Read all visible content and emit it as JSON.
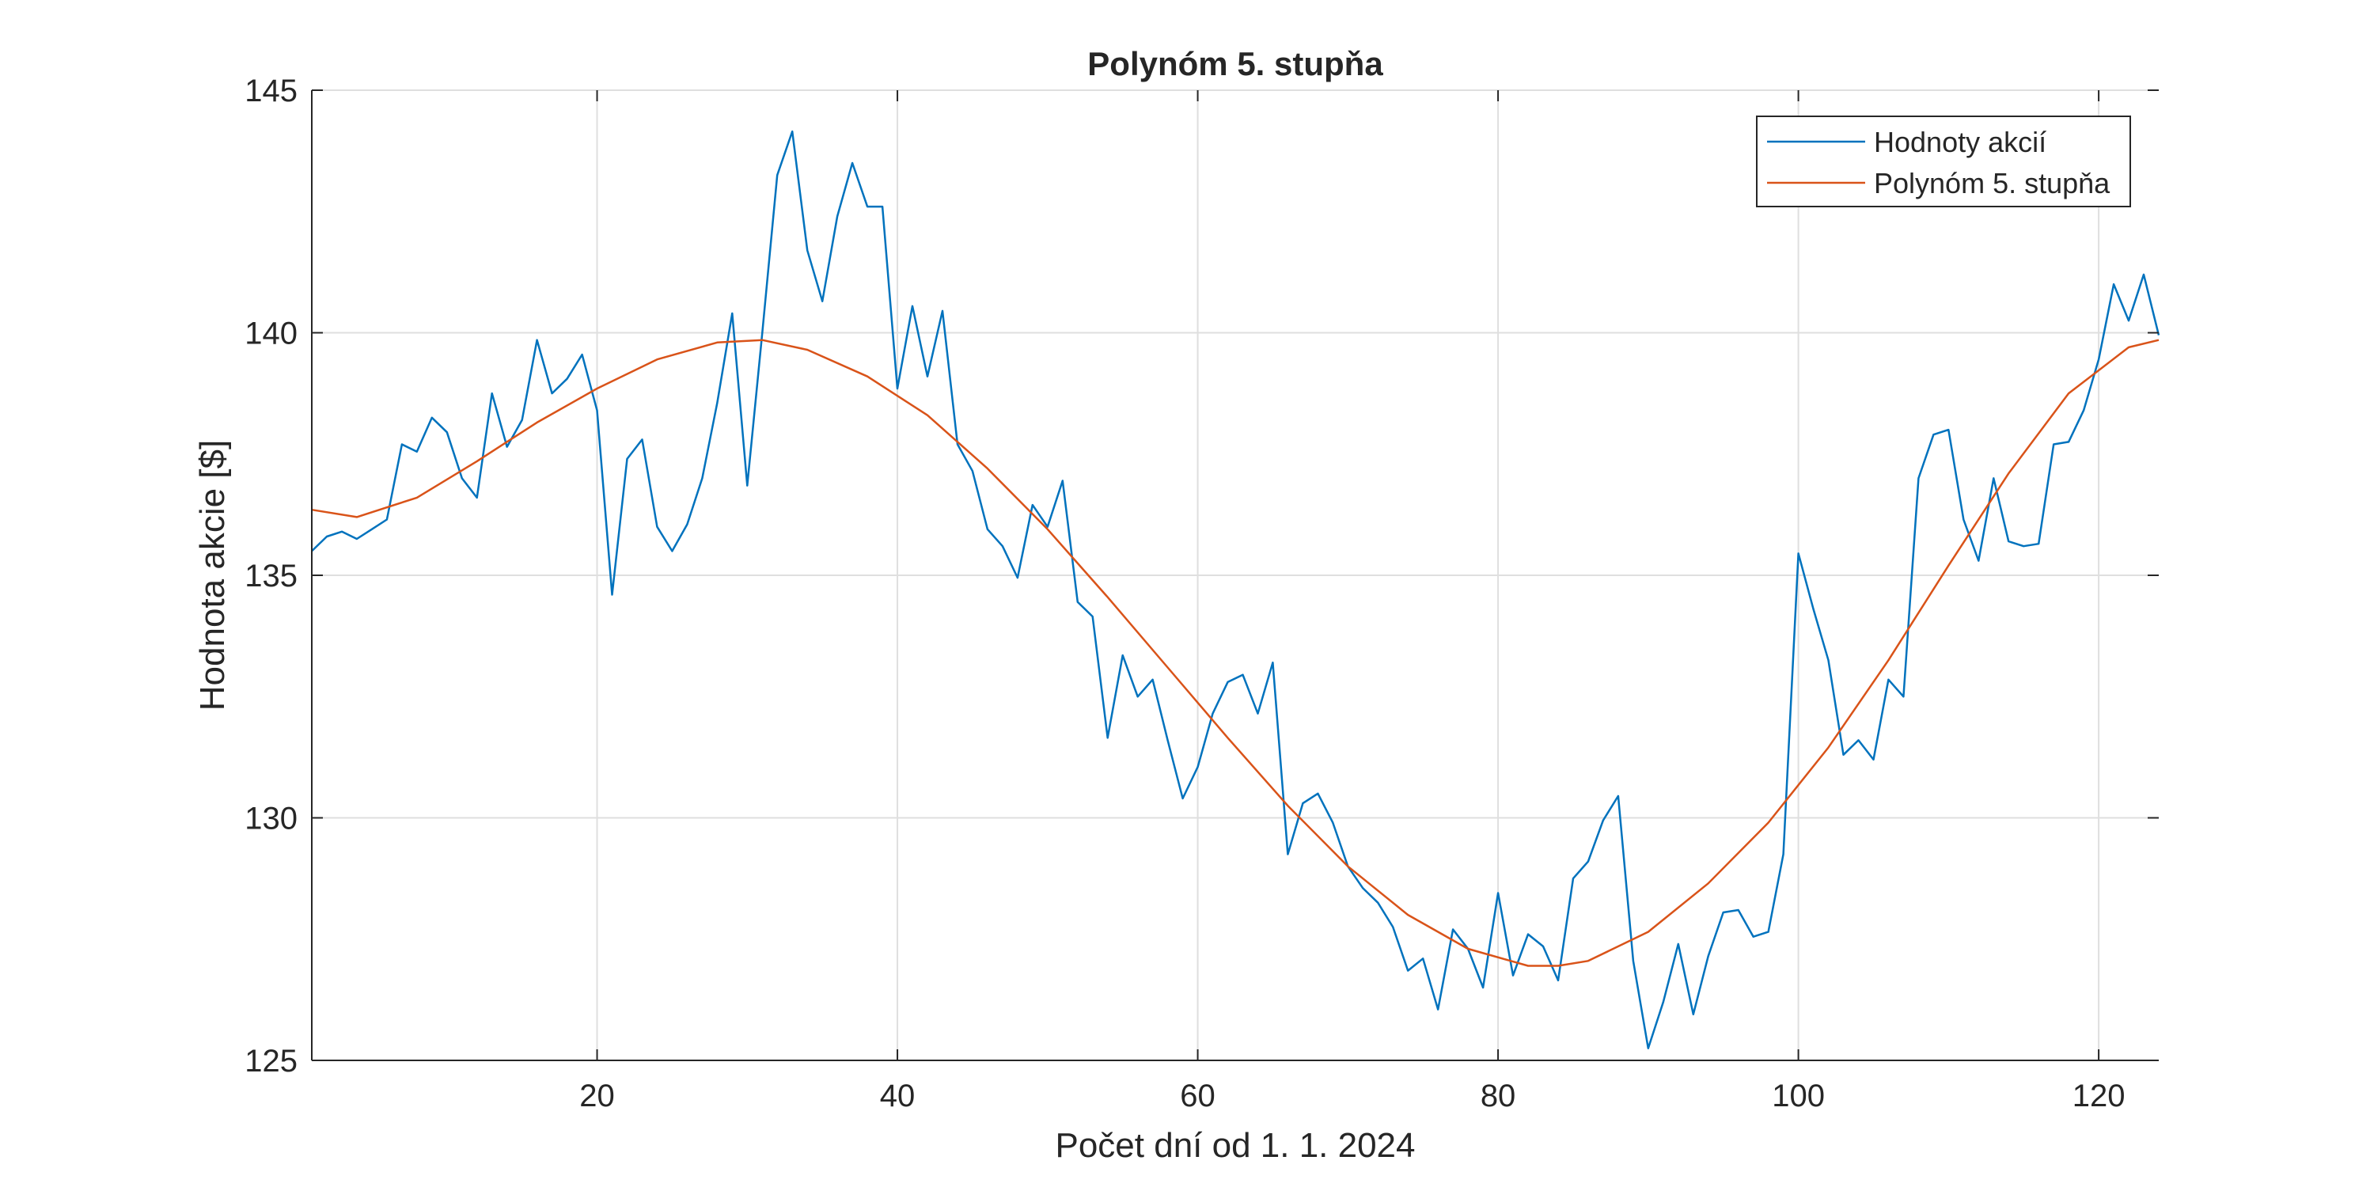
{
  "chart_data": {
    "type": "line",
    "title": "Polynóm 5. stupňa",
    "xlabel": "Počet dní od 1. 1. 2024",
    "ylabel": "Hodnota akcie [$]",
    "xlim": [
      1,
      124
    ],
    "ylim": [
      125,
      145
    ],
    "xticks": [
      20,
      40,
      60,
      80,
      100,
      120
    ],
    "yticks": [
      125,
      130,
      135,
      140,
      145
    ],
    "xtick_labels": [
      "20",
      "40",
      "60",
      "80",
      "100",
      "120"
    ],
    "ytick_labels": [
      "125",
      "130",
      "135",
      "140",
      "145"
    ],
    "grid": true,
    "legend_position": "top-right",
    "series": [
      {
        "name": "Hodnoty akcií",
        "color": "#0072BD",
        "x": [
          1,
          2,
          3,
          4,
          5,
          6,
          7,
          8,
          9,
          10,
          11,
          12,
          13,
          14,
          15,
          16,
          17,
          18,
          19,
          20,
          21,
          22,
          23,
          24,
          25,
          26,
          27,
          28,
          29,
          30,
          31,
          32,
          33,
          34,
          35,
          36,
          37,
          38,
          39,
          40,
          41,
          42,
          43,
          44,
          45,
          46,
          47,
          48,
          49,
          50,
          51,
          52,
          53,
          54,
          55,
          56,
          57,
          58,
          59,
          60,
          61,
          62,
          63,
          64,
          65,
          66,
          67,
          68,
          69,
          70,
          71,
          72,
          73,
          74,
          75,
          76,
          77,
          78,
          79,
          80,
          81,
          82,
          83,
          84,
          85,
          86,
          87,
          88,
          89,
          90,
          91,
          92,
          93,
          94,
          95,
          96,
          97,
          98,
          99,
          100,
          101,
          102,
          103,
          104,
          105,
          106,
          107,
          108,
          109,
          110,
          111,
          112,
          113,
          114,
          115,
          116,
          117,
          118,
          119,
          120,
          121,
          122,
          123,
          124
        ],
        "y": [
          135.5,
          135.8,
          135.9,
          135.75,
          135.95,
          136.15,
          137.7,
          137.55,
          138.25,
          137.95,
          137.0,
          136.6,
          138.75,
          137.65,
          138.2,
          139.85,
          138.75,
          139.05,
          139.55,
          138.4,
          134.6,
          137.4,
          137.8,
          136.0,
          135.5,
          136.05,
          137.0,
          138.55,
          140.4,
          136.85,
          140.0,
          143.25,
          144.15,
          141.7,
          140.65,
          142.4,
          143.5,
          142.6,
          142.6,
          138.85,
          140.55,
          139.1,
          140.45,
          137.7,
          137.15,
          135.95,
          135.6,
          134.95,
          136.45,
          136.0,
          136.95,
          134.45,
          134.15,
          131.65,
          133.35,
          132.5,
          132.85,
          131.6,
          130.4,
          131.05,
          132.15,
          132.8,
          132.95,
          132.15,
          133.2,
          129.25,
          130.3,
          130.5,
          129.9,
          129.0,
          128.55,
          128.25,
          127.75,
          126.85,
          127.1,
          126.05,
          127.7,
          127.3,
          126.5,
          128.45,
          126.75,
          127.6,
          127.35,
          126.65,
          128.75,
          129.1,
          129.95,
          130.45,
          127.05,
          125.25,
          126.2,
          127.4,
          125.95,
          127.15,
          128.05,
          128.1,
          127.55,
          127.65,
          129.25,
          135.45,
          134.3,
          133.25,
          131.3,
          131.6,
          131.2,
          132.85,
          132.5,
          137.0,
          137.9,
          138.0,
          136.15,
          135.3,
          137.0,
          135.7,
          135.6,
          135.65,
          137.7,
          137.75,
          138.4,
          139.45,
          141.0,
          140.25,
          141.2,
          139.95
        ]
      },
      {
        "name": "Polynóm 5. stupňa",
        "color": "#D95319",
        "x": [
          1,
          4,
          8,
          12,
          16,
          20,
          24,
          28,
          31,
          34,
          38,
          42,
          46,
          50,
          54,
          58,
          62,
          66,
          70,
          74,
          78,
          82,
          84,
          86,
          90,
          94,
          98,
          102,
          106,
          110,
          114,
          118,
          122,
          124
        ],
        "y": [
          136.35,
          136.2,
          136.6,
          137.35,
          138.15,
          138.85,
          139.45,
          139.8,
          139.85,
          139.65,
          139.1,
          138.3,
          137.2,
          135.95,
          134.55,
          133.1,
          131.65,
          130.25,
          129.0,
          128.0,
          127.3,
          126.95,
          126.95,
          127.05,
          127.65,
          128.65,
          129.9,
          131.45,
          133.25,
          135.2,
          137.1,
          138.75,
          139.7,
          139.85
        ]
      }
    ]
  }
}
